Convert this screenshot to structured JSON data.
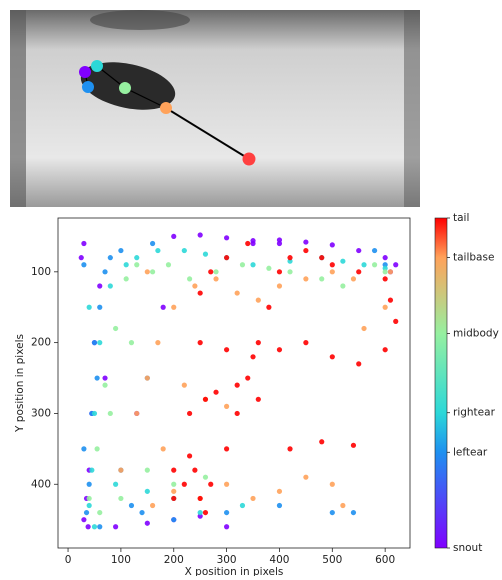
{
  "chart_data": {
    "type": "scatter",
    "xlabel": "X position in pixels",
    "ylabel": "Y position in pixels",
    "xlim": [
      -19,
      647
    ],
    "ylim": [
      490,
      24
    ],
    "xticks": [
      0,
      100,
      200,
      300,
      400,
      500,
      600
    ],
    "yticks": [
      100,
      200,
      300,
      400
    ],
    "clim": [
      0,
      1
    ],
    "cticks": [
      {
        "value": 0,
        "label": "snout"
      },
      {
        "value": 0.29,
        "label": "leftear"
      },
      {
        "value": 0.41,
        "label": "rightear"
      },
      {
        "value": 0.65,
        "label": "midbody"
      },
      {
        "value": 0.88,
        "label": "tailbase"
      },
      {
        "value": 1,
        "label": "tail"
      }
    ],
    "series": [
      {
        "color": "#8000ff",
        "x": [
          30,
          35,
          40,
          45,
          50,
          60,
          25,
          30,
          38,
          90,
          150,
          200,
          250,
          300,
          350,
          400,
          450,
          500,
          550,
          600,
          610,
          620,
          200,
          250,
          300,
          350,
          400,
          180,
          130,
          70
        ],
        "y": [
          450,
          420,
          380,
          300,
          200,
          120,
          80,
          60,
          460,
          460,
          455,
          450,
          445,
          460,
          60,
          55,
          58,
          62,
          70,
          80,
          100,
          90,
          50,
          48,
          52,
          56,
          60,
          150,
          300,
          250
        ]
      },
      {
        "color": "#1e90f0",
        "x": [
          35,
          40,
          30,
          45,
          55,
          60,
          70,
          80,
          100,
          140,
          200,
          300,
          400,
          500,
          540,
          600,
          580,
          60,
          100,
          150,
          30,
          50,
          120,
          160
        ],
        "y": [
          440,
          400,
          350,
          300,
          250,
          150,
          100,
          80,
          70,
          440,
          450,
          440,
          430,
          440,
          440,
          90,
          70,
          460,
          380,
          250,
          90,
          200,
          430,
          60
        ]
      },
      {
        "color": "#2cd8d8",
        "x": [
          40,
          45,
          50,
          60,
          80,
          110,
          130,
          170,
          220,
          260,
          300,
          350,
          420,
          480,
          520,
          560,
          600,
          50,
          90,
          150,
          200,
          250,
          330,
          40
        ],
        "y": [
          430,
          380,
          300,
          200,
          120,
          90,
          80,
          70,
          70,
          75,
          80,
          90,
          85,
          80,
          85,
          90,
          95,
          460,
          400,
          410,
          420,
          440,
          430,
          150
        ]
      },
      {
        "color": "#96f0a0",
        "x": [
          40,
          55,
          70,
          90,
          110,
          130,
          160,
          190,
          230,
          280,
          330,
          380,
          420,
          480,
          520,
          580,
          600,
          60,
          100,
          150,
          200,
          260,
          80,
          120
        ],
        "y": [
          420,
          350,
          260,
          180,
          110,
          90,
          100,
          90,
          110,
          100,
          90,
          95,
          100,
          110,
          120,
          90,
          100,
          440,
          420,
          380,
          400,
          390,
          300,
          200
        ]
      },
      {
        "color": "#ffa25a",
        "x": [
          100,
          130,
          150,
          170,
          200,
          240,
          280,
          320,
          360,
          400,
          450,
          500,
          540,
          560,
          600,
          610,
          160,
          200,
          250,
          300,
          350,
          400,
          450,
          500,
          520,
          220,
          260,
          300,
          150,
          180
        ],
        "y": [
          380,
          300,
          250,
          200,
          150,
          120,
          110,
          130,
          140,
          120,
          110,
          100,
          110,
          180,
          150,
          100,
          430,
          410,
          420,
          400,
          420,
          410,
          390,
          400,
          430,
          260,
          280,
          290,
          100,
          350
        ]
      },
      {
        "color": "#ff0000",
        "x": [
          200,
          220,
          240,
          250,
          260,
          270,
          300,
          320,
          340,
          360,
          380,
          400,
          420,
          450,
          480,
          500,
          550,
          600,
          610,
          620,
          250,
          300,
          350,
          400,
          450,
          500,
          550,
          600,
          230,
          260,
          280,
          320,
          360,
          420,
          480,
          540,
          200,
          230,
          250,
          270,
          300,
          340
        ],
        "y": [
          420,
          400,
          380,
          420,
          440,
          400,
          350,
          300,
          250,
          200,
          150,
          100,
          80,
          70,
          80,
          90,
          100,
          110,
          140,
          170,
          200,
          210,
          220,
          210,
          200,
          220,
          230,
          210,
          300,
          280,
          270,
          260,
          280,
          350,
          340,
          345,
          380,
          360,
          130,
          100,
          80,
          60
        ]
      }
    ]
  }
}
